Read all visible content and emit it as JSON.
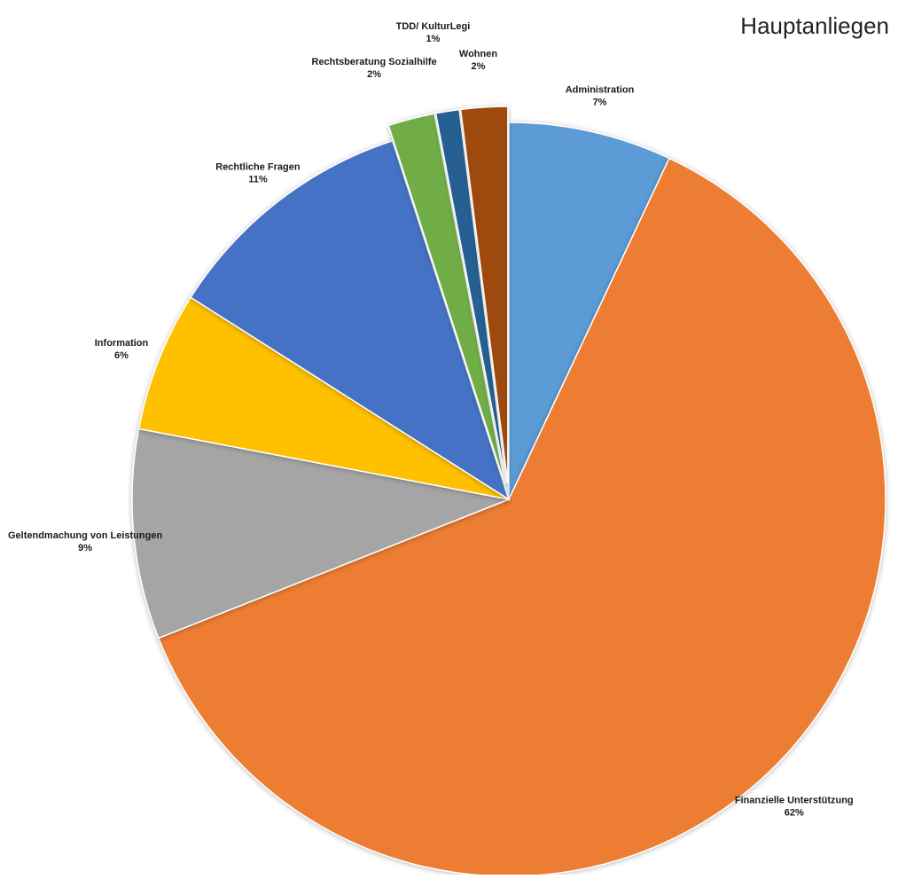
{
  "chart_data": {
    "type": "pie",
    "title": "Hauptanliegen",
    "slices": [
      {
        "label": "Administration",
        "value": 7,
        "value_label": "7%",
        "color": "#5B9BD5",
        "exploded": false
      },
      {
        "label": "Finanzielle Unterstützung",
        "value": 62,
        "value_label": "62%",
        "color": "#ED7D31",
        "exploded": false
      },
      {
        "label": "Geltendmachung von Leistungen",
        "value": 9,
        "value_label": "9%",
        "color": "#A5A5A5",
        "exploded": false
      },
      {
        "label": "Information",
        "value": 6,
        "value_label": "6%",
        "color": "#FFC000",
        "exploded": false
      },
      {
        "label": "Rechtliche Fragen",
        "value": 11,
        "value_label": "11%",
        "color": "#4472C4",
        "exploded": false
      },
      {
        "label": "Rechtsberatung Sozialhilfe",
        "value": 2,
        "value_label": "2%",
        "color": "#70AD47",
        "exploded": true
      },
      {
        "label": "TDD/ KulturLegi",
        "value": 1,
        "value_label": "1%",
        "color": "#255E91",
        "exploded": true
      },
      {
        "label": "Wohnen",
        "value": 2,
        "value_label": "2%",
        "color": "#9E480E",
        "exploded": true
      }
    ],
    "legend": "none",
    "start_angle": "12 o'clock",
    "direction": "clockwise"
  }
}
